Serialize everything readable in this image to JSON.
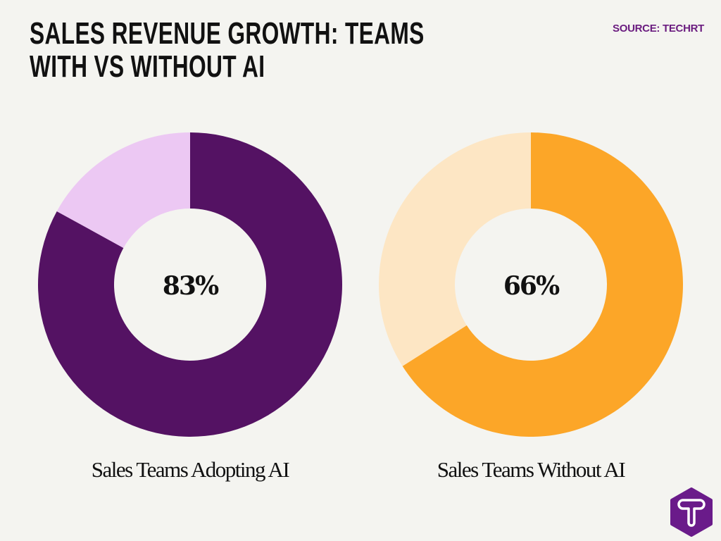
{
  "title": "SALES REVENUE GROWTH: TEAMS WITH VS WITHOUT AI",
  "source": "SOURCE: TECHRT",
  "logo": {
    "letter": "T",
    "color": "#6a1b8a"
  },
  "chart_data": [
    {
      "type": "pie",
      "variant": "donut",
      "label": "Sales Teams Adopting AI",
      "center_text": "83%",
      "values": [
        83,
        17
      ],
      "colors": [
        "#541263",
        "#ecc8f3"
      ]
    },
    {
      "type": "pie",
      "variant": "donut",
      "label": "Sales Teams Without AI",
      "center_text": "66%",
      "values": [
        66,
        34
      ],
      "colors": [
        "#fca628",
        "#fde6c4"
      ]
    }
  ]
}
